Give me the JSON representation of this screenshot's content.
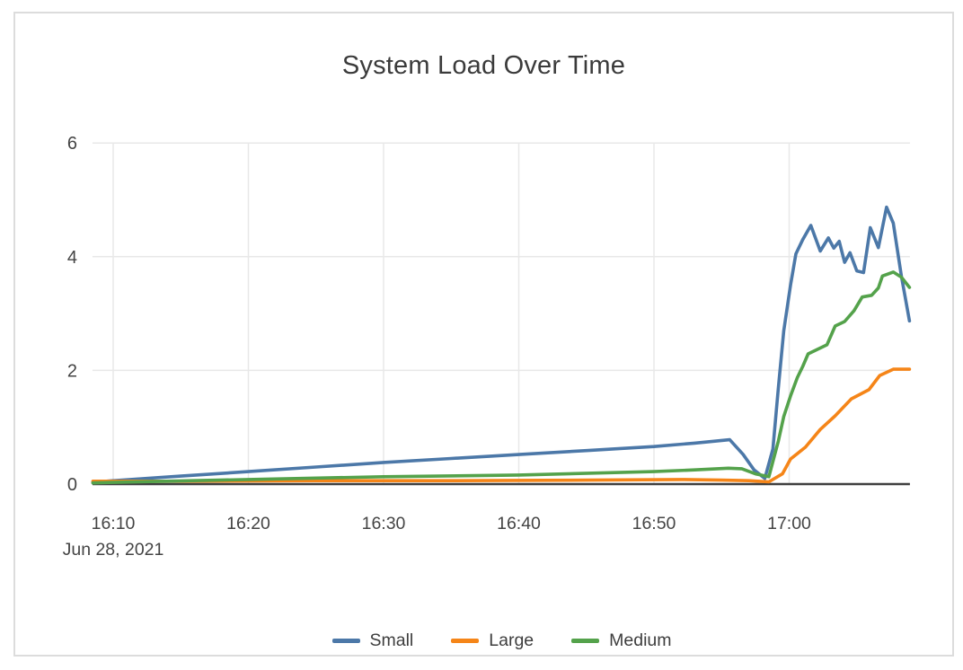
{
  "styles": {
    "grid_color": "#e8e8e8",
    "zero_line_color": "#3f3f3f",
    "text_color": "#444444",
    "title_color": "#3b3b3b",
    "card_border_color": "#dcdcdc",
    "series_colors": {
      "small": "#4c78a8",
      "large": "#f58518",
      "medium": "#54a24b"
    }
  },
  "chart_data": {
    "type": "line",
    "title": "System Load Over Time",
    "xlabel": "",
    "ylabel": "",
    "grid": true,
    "legend_position": "bottom",
    "x_axis": {
      "kind": "time",
      "date_label": "Jun 28, 2021",
      "range_minutes_after_1600": [
        8.47,
        68.93
      ],
      "ticks": [
        {
          "t": 10,
          "label": "16:10"
        },
        {
          "t": 20,
          "label": "16:20"
        },
        {
          "t": 30,
          "label": "16:30"
        },
        {
          "t": 40,
          "label": "16:40"
        },
        {
          "t": 50,
          "label": "16:50"
        },
        {
          "t": 60,
          "label": "17:00"
        }
      ]
    },
    "y_axis": {
      "range": [
        0,
        6
      ],
      "ticks": [
        0,
        2,
        4,
        6
      ]
    },
    "series": [
      {
        "name": "Small",
        "color": "#4c78a8",
        "points": [
          [
            8.5,
            0.03
          ],
          [
            10,
            0.06
          ],
          [
            15,
            0.14
          ],
          [
            20,
            0.22
          ],
          [
            25,
            0.3
          ],
          [
            30,
            0.38
          ],
          [
            35,
            0.45
          ],
          [
            40,
            0.52
          ],
          [
            45,
            0.59
          ],
          [
            50,
            0.66
          ],
          [
            53,
            0.72
          ],
          [
            55.6,
            0.78
          ],
          [
            56.6,
            0.52
          ],
          [
            57.4,
            0.25
          ],
          [
            58.2,
            0.1
          ],
          [
            58.8,
            0.62
          ],
          [
            59.2,
            1.7
          ],
          [
            59.6,
            2.7
          ],
          [
            60.1,
            3.5
          ],
          [
            60.5,
            4.05
          ],
          [
            61.0,
            4.3
          ],
          [
            61.6,
            4.55
          ],
          [
            62.3,
            4.1
          ],
          [
            62.9,
            4.33
          ],
          [
            63.3,
            4.15
          ],
          [
            63.7,
            4.27
          ],
          [
            64.1,
            3.9
          ],
          [
            64.5,
            4.07
          ],
          [
            65.0,
            3.75
          ],
          [
            65.5,
            3.72
          ],
          [
            66.0,
            4.51
          ],
          [
            66.6,
            4.16
          ],
          [
            67.2,
            4.87
          ],
          [
            67.7,
            4.59
          ],
          [
            68.3,
            3.66
          ],
          [
            68.9,
            2.87
          ]
        ]
      },
      {
        "name": "Large",
        "color": "#f58518",
        "points": [
          [
            8.5,
            0.05
          ],
          [
            15,
            0.05
          ],
          [
            25,
            0.06
          ],
          [
            35,
            0.06
          ],
          [
            45,
            0.07
          ],
          [
            52,
            0.08
          ],
          [
            55,
            0.07
          ],
          [
            57,
            0.06
          ],
          [
            58.5,
            0.04
          ],
          [
            59.5,
            0.18
          ],
          [
            60.1,
            0.44
          ],
          [
            61.2,
            0.65
          ],
          [
            62.3,
            0.96
          ],
          [
            63.4,
            1.2
          ],
          [
            64.6,
            1.5
          ],
          [
            65.9,
            1.66
          ],
          [
            66.7,
            1.91
          ],
          [
            67.7,
            2.02
          ],
          [
            68.9,
            2.02
          ]
        ]
      },
      {
        "name": "Medium",
        "color": "#54a24b",
        "points": [
          [
            8.5,
            0.02
          ],
          [
            10,
            0.03
          ],
          [
            20,
            0.08
          ],
          [
            30,
            0.13
          ],
          [
            40,
            0.16
          ],
          [
            50,
            0.22
          ],
          [
            53,
            0.25
          ],
          [
            55.5,
            0.28
          ],
          [
            56.5,
            0.27
          ],
          [
            57.5,
            0.18
          ],
          [
            58.5,
            0.13
          ],
          [
            59.2,
            0.76
          ],
          [
            59.6,
            1.19
          ],
          [
            60.1,
            1.55
          ],
          [
            60.6,
            1.87
          ],
          [
            61.0,
            2.07
          ],
          [
            61.4,
            2.29
          ],
          [
            62.8,
            2.45
          ],
          [
            63.4,
            2.78
          ],
          [
            64.1,
            2.86
          ],
          [
            64.8,
            3.05
          ],
          [
            65.4,
            3.29
          ],
          [
            66.1,
            3.32
          ],
          [
            66.6,
            3.45
          ],
          [
            66.9,
            3.66
          ],
          [
            67.7,
            3.73
          ],
          [
            68.3,
            3.64
          ],
          [
            68.9,
            3.46
          ]
        ]
      }
    ]
  }
}
